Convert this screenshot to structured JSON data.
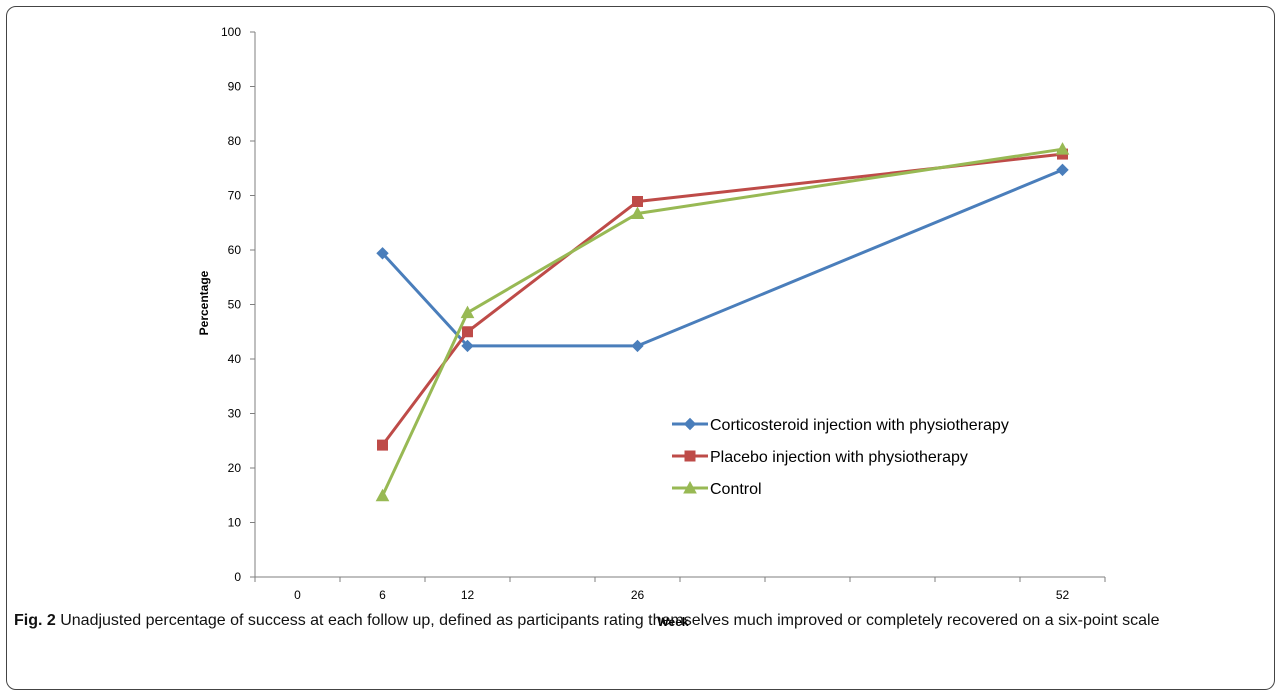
{
  "chart_data": {
    "type": "line",
    "xlabel": "Week",
    "ylabel": "Percentage",
    "x": [
      6,
      12,
      26,
      52
    ],
    "x_tick_labels": [
      "0",
      "6",
      "12",
      "26",
      "52"
    ],
    "ylim": [
      0,
      100
    ],
    "y_ticks": [
      0,
      10,
      20,
      30,
      40,
      50,
      60,
      70,
      80,
      90,
      100
    ],
    "grid": false,
    "legend_position": "center-right",
    "series": [
      {
        "name": "Corticosteroid injection with physiotherapy",
        "color": "#4a7ebb",
        "marker": "diamond",
        "values": [
          59.4,
          42.4,
          42.4,
          74.7
        ]
      },
      {
        "name": "Placebo injection with physiotherapy",
        "color": "#be4b48",
        "marker": "square",
        "values": [
          24.2,
          45.0,
          68.9,
          77.6
        ]
      },
      {
        "name": "Control",
        "color": "#98b954",
        "marker": "triangle",
        "values": [
          14.9,
          48.5,
          66.7,
          78.5
        ]
      }
    ]
  },
  "caption": {
    "label": "Fig. 2",
    "text": " Unadjusted percentage of success at each follow up, defined as participants rating themselves much improved or completely recovered on a six-point scale"
  }
}
